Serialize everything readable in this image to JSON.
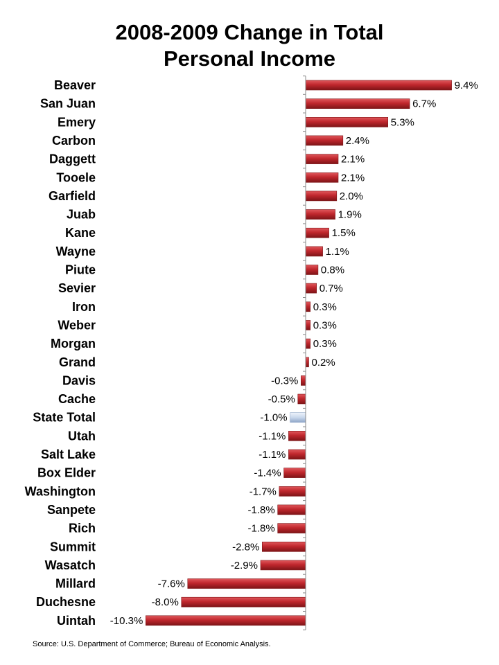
{
  "chart_data": {
    "type": "bar",
    "orientation": "horizontal",
    "title_lines": [
      "2008-2009 Change in Total",
      "Personal Income"
    ],
    "categories": [
      "Beaver",
      "San Juan",
      "Emery",
      "Carbon",
      "Daggett",
      "Tooele",
      "Garfield",
      "Juab",
      "Kane",
      "Wayne",
      "Piute",
      "Sevier",
      "Iron",
      "Weber",
      "Morgan",
      "Grand",
      "Davis",
      "Cache",
      "State Total",
      "Utah",
      "Salt Lake",
      "Box Elder",
      "Washington",
      "Sanpete",
      "Rich",
      "Summit",
      "Wasatch",
      "Millard",
      "Duchesne",
      "Uintah"
    ],
    "values": [
      9.4,
      6.7,
      5.3,
      2.4,
      2.1,
      2.1,
      2.0,
      1.9,
      1.5,
      1.1,
      0.8,
      0.7,
      0.3,
      0.3,
      0.3,
      0.2,
      -0.3,
      -0.5,
      -1.0,
      -1.1,
      -1.1,
      -1.4,
      -1.7,
      -1.8,
      -1.8,
      -2.8,
      -2.9,
      -7.6,
      -8.0,
      -10.3
    ],
    "value_labels": [
      "9.4%",
      "6.7%",
      "5.3%",
      "2.4%",
      "2.1%",
      "2.1%",
      "2.0%",
      "1.9%",
      "1.5%",
      "1.1%",
      "0.8%",
      "0.7%",
      "0.3%",
      "0.3%",
      "0.3%",
      "0.2%",
      "-0.3%",
      "-0.5%",
      "-1.0%",
      "-1.1%",
      "-1.1%",
      "-1.4%",
      "-1.7%",
      "-1.8%",
      "-1.8%",
      "-2.8%",
      "-2.9%",
      "-7.6%",
      "-8.0%",
      "-10.3%"
    ],
    "highlight_category": "State Total",
    "xlim": [
      -10.3,
      9.4
    ],
    "grid": false,
    "legend": "none",
    "colors": {
      "bar": "#c0272d",
      "bar_light": "#e0585c",
      "bar_dark": "#7e1417",
      "highlight": "#c9d7ec",
      "highlight_light": "#eef3fb",
      "highlight_dark": "#8fa6c8",
      "axis": "#888888"
    }
  },
  "source": "Source: U.S. Department of Commerce; Bureau of Economic Analysis."
}
